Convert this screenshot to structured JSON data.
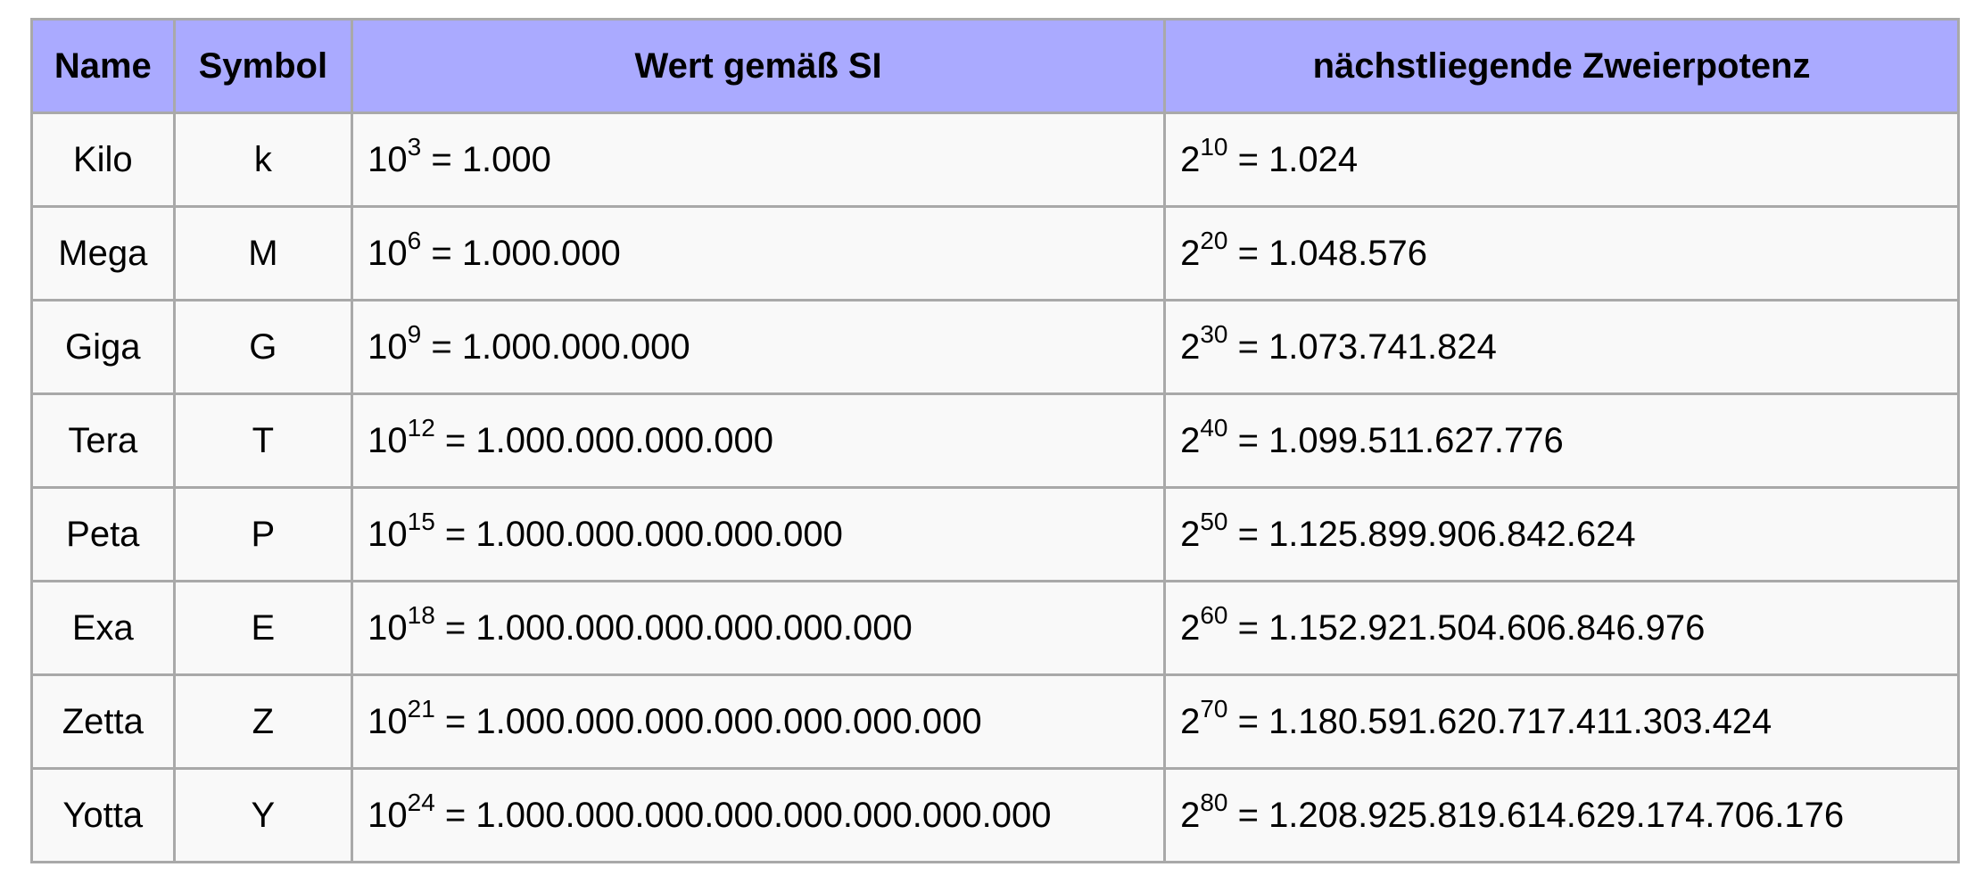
{
  "headers": {
    "name": "Name",
    "symbol": "Symbol",
    "si_value": "Wert gemäß SI",
    "binary": "nächstliegende Zweierpotenz"
  },
  "rows": [
    {
      "name": "Kilo",
      "symbol": "k",
      "si_base": "10",
      "si_exp": "3",
      "si_result": "1.000",
      "bin_base": "2",
      "bin_exp": "10",
      "bin_result": "1.024"
    },
    {
      "name": "Mega",
      "symbol": "M",
      "si_base": "10",
      "si_exp": "6",
      "si_result": "1.000.000",
      "bin_base": "2",
      "bin_exp": "20",
      "bin_result": "1.048.576"
    },
    {
      "name": "Giga",
      "symbol": "G",
      "si_base": "10",
      "si_exp": "9",
      "si_result": "1.000.000.000",
      "bin_base": "2",
      "bin_exp": "30",
      "bin_result": "1.073.741.824"
    },
    {
      "name": "Tera",
      "symbol": "T",
      "si_base": "10",
      "si_exp": "12",
      "si_result": "1.000.000.000.000",
      "bin_base": "2",
      "bin_exp": "40",
      "bin_result": "1.099.511.627.776"
    },
    {
      "name": "Peta",
      "symbol": "P",
      "si_base": "10",
      "si_exp": "15",
      "si_result": "1.000.000.000.000.000",
      "bin_base": "2",
      "bin_exp": "50",
      "bin_result": "1.125.899.906.842.624"
    },
    {
      "name": "Exa",
      "symbol": "E",
      "si_base": "10",
      "si_exp": "18",
      "si_result": "1.000.000.000.000.000.000",
      "bin_base": "2",
      "bin_exp": "60",
      "bin_result": "1.152.921.504.606.846.976"
    },
    {
      "name": "Zetta",
      "symbol": "Z",
      "si_base": "10",
      "si_exp": "21",
      "si_result": "1.000.000.000.000.000.000.000",
      "bin_base": "2",
      "bin_exp": "70",
      "bin_result": "1.180.591.620.717.411.303.424"
    },
    {
      "name": "Yotta",
      "symbol": "Y",
      "si_base": "10",
      "si_exp": "24",
      "si_result": "1.000.000.000.000.000.000.000.000",
      "bin_base": "2",
      "bin_exp": "80",
      "bin_result": "1.208.925.819.614.629.174.706.176"
    }
  ],
  "colors": {
    "header_bg": "#aaaaff",
    "border": "#a9a9a9",
    "link": "#0645ad",
    "cell_bg": "#f9f9f9"
  }
}
